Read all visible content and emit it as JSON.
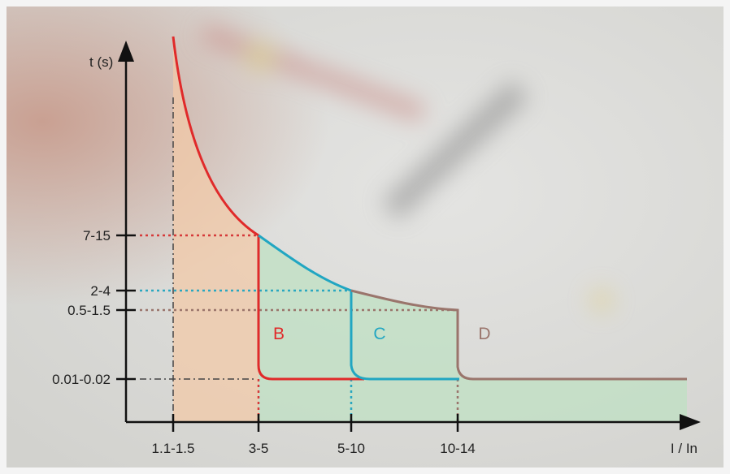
{
  "axes": {
    "y_label": "t (s)",
    "x_label": "I / In"
  },
  "y_ticks": [
    "7-15",
    "2-4",
    "0.5-1.5",
    "0.01-0.02"
  ],
  "x_ticks": [
    "1.1-1.5",
    "3-5",
    "5-10",
    "10-14"
  ],
  "curves": [
    {
      "label": "B"
    },
    {
      "label": "C"
    },
    {
      "label": "D"
    }
  ]
}
